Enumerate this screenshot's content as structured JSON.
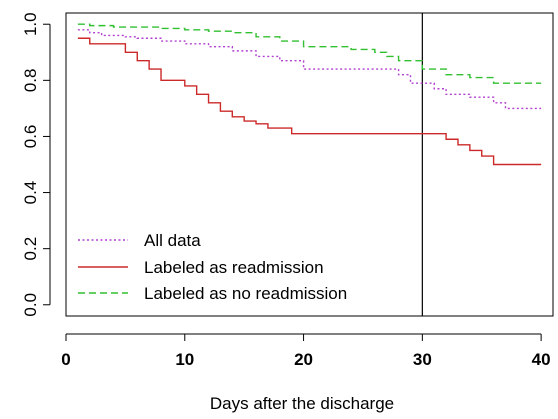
{
  "chart_data": {
    "type": "line",
    "xlabel": "Days after the discharge",
    "ylabel": "",
    "xlim": [
      0,
      41
    ],
    "ylim": [
      -0.04,
      1.04
    ],
    "xticks": [
      "0",
      "10",
      "20",
      "30",
      "40"
    ],
    "yticks": [
      "0.0",
      "0.2",
      "0.4",
      "0.6",
      "0.8",
      "1.0"
    ],
    "vertical_reference_line": {
      "x": 30
    },
    "legend_placement": "bottom-left",
    "step": true,
    "series": [
      {
        "name": "All data",
        "color": "#b040d0",
        "dash": "dotted",
        "x": [
          1,
          2,
          3,
          5,
          6,
          8,
          10,
          12,
          14,
          16,
          18,
          20,
          28,
          29,
          31,
          32,
          34,
          36,
          37,
          40
        ],
        "y": [
          0.98,
          0.97,
          0.96,
          0.955,
          0.95,
          0.94,
          0.93,
          0.92,
          0.905,
          0.885,
          0.87,
          0.84,
          0.82,
          0.79,
          0.77,
          0.75,
          0.74,
          0.72,
          0.7,
          0.7
        ]
      },
      {
        "name": "Labeled as readmission",
        "color": "#cc2a2a",
        "dash": "solid",
        "x": [
          1,
          2,
          5,
          6,
          7,
          8,
          10,
          11,
          12,
          13,
          14,
          15,
          16,
          17,
          19,
          30,
          32,
          33,
          34,
          35,
          36,
          40
        ],
        "y": [
          0.95,
          0.93,
          0.9,
          0.87,
          0.84,
          0.8,
          0.78,
          0.75,
          0.72,
          0.69,
          0.67,
          0.655,
          0.645,
          0.63,
          0.61,
          0.61,
          0.59,
          0.57,
          0.55,
          0.53,
          0.5,
          0.5
        ]
      },
      {
        "name": "Labeled as no readmission",
        "color": "#30c030",
        "dash": "dashed",
        "x": [
          1,
          2,
          4,
          6,
          8,
          10,
          12,
          14,
          16,
          18,
          20,
          24,
          26,
          27,
          28,
          30,
          32,
          34,
          36,
          40
        ],
        "y": [
          1.0,
          0.995,
          0.99,
          0.99,
          0.985,
          0.98,
          0.975,
          0.97,
          0.955,
          0.94,
          0.92,
          0.91,
          0.9,
          0.885,
          0.87,
          0.84,
          0.82,
          0.81,
          0.79,
          0.79
        ]
      }
    ]
  }
}
